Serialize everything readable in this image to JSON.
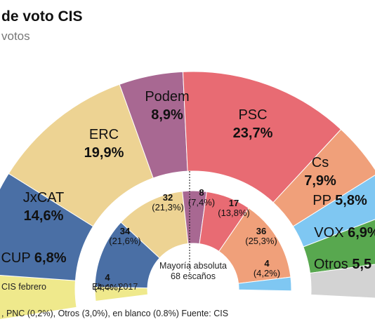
{
  "title": "de voto CIS",
  "subtitle": "votos",
  "footnote": ", PNC (0,2%), Otros (3,0%), en blanco (0.8%) Fuente: CIS",
  "chart_data": [
    {
      "type": "pie",
      "label": "CIS febrero",
      "slices": [
        {
          "name": "CUP",
          "value_label": "6,8%",
          "value": 6.8,
          "color": "#efe98c"
        },
        {
          "name": "JxCAT",
          "value_label": "14,6%",
          "value": 14.6,
          "color": "#4a6fa5"
        },
        {
          "name": "ERC",
          "value_label": "19,9%",
          "value": 19.9,
          "color": "#edd393"
        },
        {
          "name": "Podem",
          "value_label": "8,9%",
          "value": 8.9,
          "color": "#a86892"
        },
        {
          "name": "PSC",
          "value_label": "23,7%",
          "value": 23.7,
          "color": "#e86b73"
        },
        {
          "name": "Cs",
          "value_label": "7,9%",
          "value": 7.9,
          "color": "#f0a07a"
        },
        {
          "name": "PP",
          "value_label": "5,8%",
          "value": 5.8,
          "color": "#7fc7f2"
        },
        {
          "name": "VOX",
          "value_label": "6,9%",
          "value": 6.9,
          "color": "#58a84f"
        },
        {
          "name": "Otros",
          "value_label": "5,5",
          "value": 5.5,
          "color": "#d3d3d3"
        }
      ]
    },
    {
      "type": "pie",
      "label": "Elecc. 2017",
      "center_line1": "Mayoría absoluta",
      "center_line2": "68 escaños",
      "slices": [
        {
          "seats": "4",
          "pct": "(4,4%)",
          "value": 4.4,
          "color": "#efe98c"
        },
        {
          "seats": "34",
          "pct": "(21,6%)",
          "value": 21.6,
          "color": "#4a6fa5"
        },
        {
          "seats": "32",
          "pct": "(21,3%)",
          "value": 21.3,
          "color": "#edd393"
        },
        {
          "seats": "8",
          "pct": "(7,4%)",
          "value": 7.4,
          "color": "#a86892"
        },
        {
          "seats": "17",
          "pct": "(13,8%)",
          "value": 13.8,
          "color": "#e86b73"
        },
        {
          "seats": "36",
          "pct": "(25,3%)",
          "value": 25.3,
          "color": "#f0a07a"
        },
        {
          "seats": "4",
          "pct": "(4,2%)",
          "value": 4.2,
          "color": "#7fc7f2"
        }
      ]
    }
  ]
}
